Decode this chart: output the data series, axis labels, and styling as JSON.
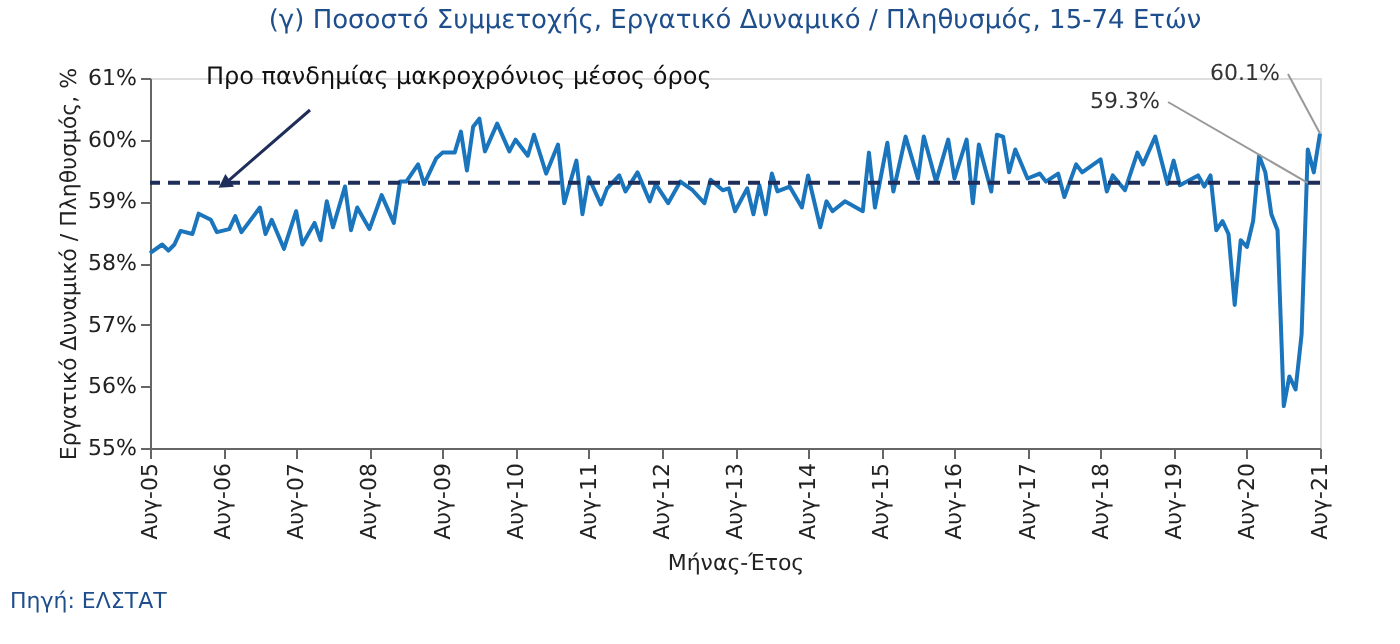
{
  "chart_data": {
    "type": "line",
    "title": "(γ) Ποσοστό Συμμετοχής, Εργατικό Δυναμικό / Πληθυσμός, 15-74 Ετών",
    "xlabel": "Μήνας-Έτος",
    "ylabel": "Εργατικό Δυναμικό / Πληθυσμός, %",
    "x": [
      "2005-08",
      "2005-10",
      "2005-11",
      "2005-12",
      "2006-01",
      "2006-03",
      "2006-04",
      "2006-06",
      "2006-07",
      "2006-09",
      "2006-10",
      "2006-11",
      "2007-02",
      "2007-03",
      "2007-04",
      "2007-06",
      "2007-08",
      "2007-09",
      "2007-11",
      "2007-12",
      "2008-01",
      "2008-02",
      "2008-04",
      "2008-05",
      "2008-06",
      "2008-08",
      "2008-10",
      "2008-12",
      "2009-01",
      "2009-02",
      "2009-04",
      "2009-05",
      "2009-07",
      "2009-08",
      "2009-09",
      "2009-10",
      "2009-11",
      "2009-12",
      "2010-01",
      "2010-02",
      "2010-03",
      "2010-05",
      "2010-07",
      "2010-08",
      "2010-10",
      "2010-11",
      "2011-01",
      "2011-03",
      "2011-04",
      "2011-06",
      "2011-07",
      "2011-08",
      "2011-10",
      "2011-11",
      "2012-01",
      "2012-02",
      "2012-04",
      "2012-06",
      "2012-07",
      "2012-09",
      "2012-11",
      "2013-01",
      "2013-03",
      "2013-04",
      "2013-06",
      "2013-07",
      "2013-08",
      "2013-10",
      "2013-11",
      "2013-12",
      "2014-01",
      "2014-02",
      "2014-03",
      "2014-05",
      "2014-07",
      "2014-08",
      "2014-10",
      "2014-11",
      "2014-12",
      "2015-02",
      "2015-05",
      "2015-06",
      "2015-07",
      "2015-09",
      "2015-10",
      "2015-12",
      "2016-02",
      "2016-03",
      "2016-05",
      "2016-07",
      "2016-08",
      "2016-10",
      "2016-11",
      "2016-12",
      "2017-02",
      "2017-03",
      "2017-04",
      "2017-05",
      "2017-06",
      "2017-08",
      "2017-10",
      "2017-11",
      "2018-01",
      "2018-02",
      "2018-04",
      "2018-05",
      "2018-08",
      "2018-09",
      "2018-10",
      "2018-12",
      "2019-02",
      "2019-03",
      "2019-05",
      "2019-07",
      "2019-08",
      "2019-09",
      "2019-12",
      "2020-01",
      "2020-02",
      "2020-03",
      "2020-04",
      "2020-05",
      "2020-06",
      "2020-07",
      "2020-08",
      "2020-09",
      "2020-10",
      "2020-11",
      "2020-12",
      "2021-01",
      "2021-02",
      "2021-03",
      "2021-04",
      "2021-05",
      "2021-06",
      "2021-07",
      "2021-08"
    ],
    "series": [
      {
        "color": "#1a75bc",
        "values": [
          58.16,
          58.3,
          58.2,
          58.3,
          58.52,
          58.47,
          58.8,
          58.7,
          58.5,
          58.55,
          58.76,
          58.5,
          58.9,
          58.47,
          58.7,
          58.23,
          58.84,
          58.3,
          58.65,
          58.37,
          59.0,
          58.58,
          59.24,
          58.53,
          58.9,
          58.55,
          59.1,
          58.65,
          59.32,
          59.32,
          59.6,
          59.28,
          59.7,
          59.79,
          59.79,
          59.79,
          60.13,
          59.5,
          60.21,
          60.34,
          59.81,
          60.26,
          59.81,
          60.0,
          59.74,
          60.08,
          59.45,
          59.92,
          58.97,
          59.66,
          58.79,
          59.39,
          58.95,
          59.21,
          59.42,
          59.16,
          59.47,
          59.0,
          59.28,
          58.97,
          59.32,
          59.18,
          58.97,
          59.35,
          59.18,
          59.21,
          58.84,
          59.21,
          58.79,
          59.26,
          58.79,
          59.45,
          59.16,
          59.24,
          58.9,
          59.42,
          58.58,
          59.0,
          58.84,
          59.0,
          58.84,
          59.79,
          58.9,
          59.95,
          59.16,
          60.05,
          59.37,
          60.05,
          59.32,
          60.0,
          59.37,
          60.0,
          58.97,
          59.92,
          59.16,
          60.08,
          60.05,
          59.47,
          59.84,
          59.37,
          59.45,
          59.32,
          59.45,
          59.07,
          59.6,
          59.47,
          59.68,
          59.16,
          59.42,
          59.18,
          59.79,
          59.6,
          60.05,
          59.28,
          59.66,
          59.26,
          59.42,
          59.24,
          59.42,
          58.53,
          58.68,
          58.47,
          57.32,
          58.37,
          58.26,
          58.68,
          59.74,
          59.47,
          58.79,
          58.53,
          55.68,
          56.16,
          55.95,
          56.84,
          59.84,
          59.47,
          60.1
        ]
      }
    ],
    "xlim": [
      "2005-08",
      "2021-08"
    ],
    "xticks": [
      {
        "value": "2005-08",
        "label": "Αυγ-05"
      },
      {
        "value": "2006-08",
        "label": "Αυγ-06"
      },
      {
        "value": "2007-08",
        "label": "Αυγ-07"
      },
      {
        "value": "2008-08",
        "label": "Αυγ-08"
      },
      {
        "value": "2009-08",
        "label": "Αυγ-09"
      },
      {
        "value": "2010-08",
        "label": "Αυγ-10"
      },
      {
        "value": "2011-08",
        "label": "Αυγ-11"
      },
      {
        "value": "2012-08",
        "label": "Αυγ-12"
      },
      {
        "value": "2013-08",
        "label": "Αυγ-13"
      },
      {
        "value": "2014-08",
        "label": "Αυγ-14"
      },
      {
        "value": "2015-08",
        "label": "Αυγ-15"
      },
      {
        "value": "2016-08",
        "label": "Αυγ-16"
      },
      {
        "value": "2017-08",
        "label": "Αυγ-17"
      },
      {
        "value": "2018-08",
        "label": "Αυγ-18"
      },
      {
        "value": "2019-08",
        "label": "Αυγ-19"
      },
      {
        "value": "2020-08",
        "label": "Αυγ-20"
      },
      {
        "value": "2021-08",
        "label": "Αυγ-21"
      }
    ],
    "ylim": [
      55,
      61
    ],
    "yticks": [
      {
        "value": 55,
        "label": "55%"
      },
      {
        "value": 56,
        "label": "56%"
      },
      {
        "value": 57,
        "label": "57%"
      },
      {
        "value": 58,
        "label": "58%"
      },
      {
        "value": 59,
        "label": "59%"
      },
      {
        "value": 60,
        "label": "60%"
      },
      {
        "value": 61,
        "label": "61%"
      }
    ],
    "ref_lines": [
      {
        "axis": "y",
        "value": 59.3,
        "label": "Προ πανδημίας μακροχρόνιος μέσος όρος",
        "color": "#1f2d5a",
        "line_style": "dashed"
      }
    ],
    "annotations": [
      {
        "text": "59.3%",
        "x": "2021-06",
        "y": 59.3
      },
      {
        "text": "60.1%",
        "x": "2021-08",
        "y": 60.1
      },
      "Πηγή: ΕΛΣΤΑΤ"
    ],
    "grid": false,
    "legend": false,
    "marker": "none",
    "line_style": "solid"
  }
}
